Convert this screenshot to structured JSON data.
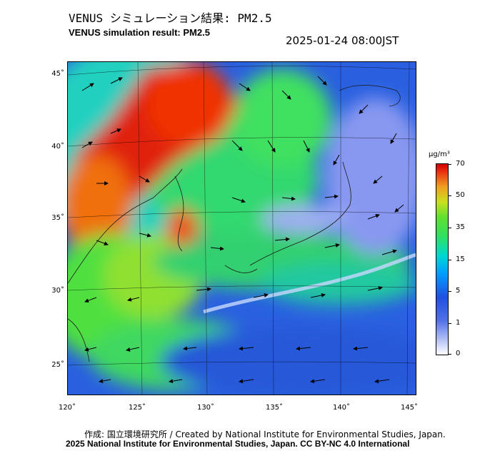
{
  "header": {
    "title_jp": "VENUS シミュレーション結果: PM2.5",
    "title_en": "VENUS simulation result: PM2.5",
    "timestamp": "2025-01-24 08:00JST"
  },
  "map": {
    "lat_labels": [
      "45˚",
      "40˚",
      "35˚",
      "30˚",
      "25˚"
    ],
    "lon_labels": [
      "120˚",
      "125˚",
      "130˚",
      "135˚",
      "140˚",
      "145˚"
    ],
    "lon_extent": [
      120,
      145
    ],
    "lat_extent": [
      23,
      46
    ]
  },
  "colorbar": {
    "unit": "μg/m³",
    "ticks": [
      "70",
      "50",
      "35",
      "15",
      "5",
      "1",
      "0"
    ],
    "colors": {
      "high": "#d00000",
      "mid": "#30e060",
      "low": "#2050e0",
      "zero": "#ffffff"
    }
  },
  "footer": {
    "credit_line1": "作成: 国立環境研究所 / Created by National Institute for Environmental Studies, Japan.",
    "credit_line2": "2025 National Institute for Environmental Studies, Japan. CC BY-NC 4.0 International"
  }
}
